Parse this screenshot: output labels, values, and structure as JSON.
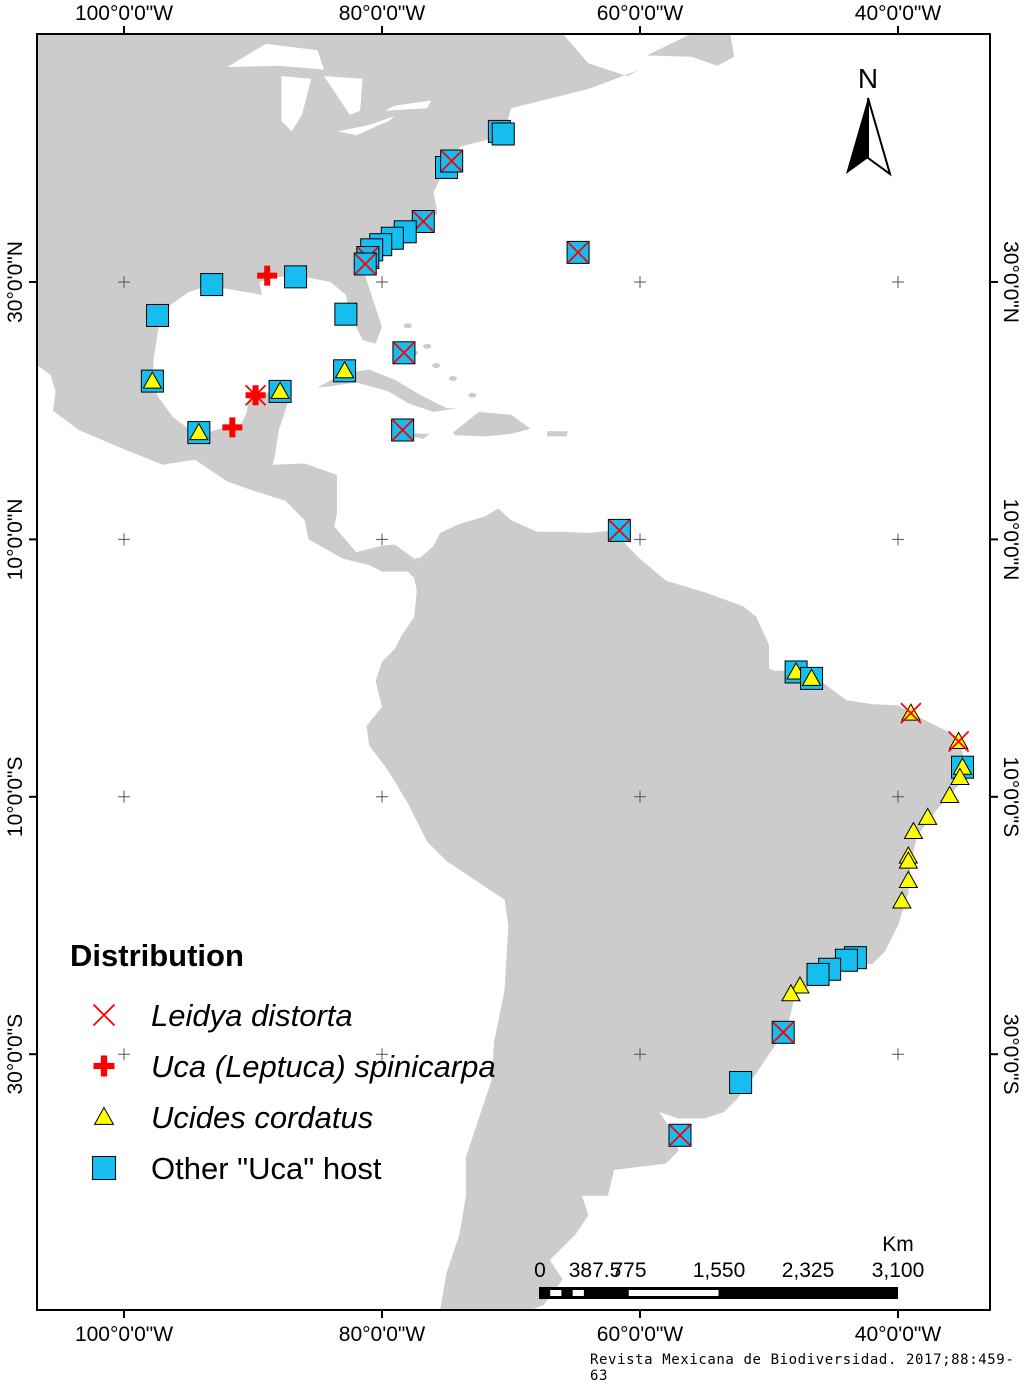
{
  "map": {
    "land_color": "#cccccc",
    "water_color": "#ffffff",
    "extent": {
      "lon": [
        -106.7,
        -32.9
      ],
      "lat": [
        -49.9,
        49.3
      ]
    },
    "graticule": {
      "lons": [
        -100,
        -80,
        -60,
        -40
      ],
      "lats": [
        30,
        10,
        -10,
        -30
      ]
    },
    "lon_labels": [
      "100°0'0\"W",
      "80°0'0\"W",
      "60°0'0\"W",
      "40°0'0\"W"
    ],
    "lat_labels": [
      "30°0'0\"N",
      "10°0'0\"N",
      "10°0'0\"S",
      "30°0'0\"S"
    ],
    "north_arrow": {
      "label": "N",
      "icon": "north-arrow-icon"
    },
    "scale_bar": {
      "unit": "Km",
      "labels": [
        "0",
        "387.5",
        "775",
        "1,550",
        "2,325",
        "3,100"
      ]
    }
  },
  "legend": {
    "title": "Distribution",
    "items": [
      {
        "key": "x",
        "label": "Leidya distorta",
        "italic": true,
        "color": "#ff0000"
      },
      {
        "key": "cross",
        "label": "Uca (Leptuca) spinicarpa",
        "italic": true,
        "color": "#ff0000"
      },
      {
        "key": "triangle",
        "label": "Ucides cordatus",
        "italic": true,
        "color": "#ffff00"
      },
      {
        "key": "square",
        "label": "Other \"Uca\" host",
        "italic": false,
        "color": "#16bdef"
      }
    ]
  },
  "points": [
    {
      "lon": -70.9,
      "lat": 41.7,
      "s": [
        "square"
      ]
    },
    {
      "lon": -70.6,
      "lat": 41.5,
      "s": [
        "square"
      ]
    },
    {
      "lon": -75.0,
      "lat": 38.9,
      "s": [
        "square"
      ]
    },
    {
      "lon": -74.6,
      "lat": 39.4,
      "s": [
        "square",
        "x"
      ]
    },
    {
      "lon": -76.8,
      "lat": 34.7,
      "s": [
        "square",
        "x"
      ]
    },
    {
      "lon": -78.2,
      "lat": 33.9,
      "s": [
        "square"
      ]
    },
    {
      "lon": -79.2,
      "lat": 33.4,
      "s": [
        "square"
      ]
    },
    {
      "lon": -80.1,
      "lat": 32.9,
      "s": [
        "square"
      ]
    },
    {
      "lon": -80.8,
      "lat": 32.5,
      "s": [
        "square"
      ]
    },
    {
      "lon": -81.1,
      "lat": 31.9,
      "s": [
        "square",
        "x"
      ]
    },
    {
      "lon": -81.3,
      "lat": 31.4,
      "s": [
        "square",
        "x"
      ]
    },
    {
      "lon": -64.8,
      "lat": 32.3,
      "s": [
        "square",
        "x"
      ]
    },
    {
      "lon": -86.7,
      "lat": 30.4,
      "s": [
        "square"
      ]
    },
    {
      "lon": -93.2,
      "lat": 29.8,
      "s": [
        "square"
      ]
    },
    {
      "lon": -97.4,
      "lat": 27.4,
      "s": [
        "square"
      ]
    },
    {
      "lon": -82.8,
      "lat": 27.5,
      "s": [
        "square"
      ]
    },
    {
      "lon": -78.3,
      "lat": 24.5,
      "s": [
        "square",
        "x"
      ]
    },
    {
      "lon": -97.8,
      "lat": 22.3,
      "s": [
        "square",
        "triangle"
      ]
    },
    {
      "lon": -82.9,
      "lat": 23.1,
      "s": [
        "square",
        "triangle"
      ]
    },
    {
      "lon": -87.9,
      "lat": 21.5,
      "s": [
        "square",
        "triangle"
      ]
    },
    {
      "lon": -94.2,
      "lat": 18.3,
      "s": [
        "square",
        "triangle"
      ]
    },
    {
      "lon": -78.4,
      "lat": 18.5,
      "s": [
        "square",
        "x"
      ]
    },
    {
      "lon": -61.6,
      "lat": 10.7,
      "s": [
        "square",
        "x"
      ]
    },
    {
      "lon": -88.9,
      "lat": 30.5,
      "s": [
        "cross"
      ]
    },
    {
      "lon": -91.6,
      "lat": 18.7,
      "s": [
        "cross"
      ]
    },
    {
      "lon": -89.8,
      "lat": 21.2,
      "s": [
        "cross",
        "x"
      ]
    },
    {
      "lon": -47.9,
      "lat": -0.3,
      "s": [
        "square",
        "triangle"
      ]
    },
    {
      "lon": -46.7,
      "lat": -0.8,
      "s": [
        "square",
        "triangle"
      ]
    },
    {
      "lon": -39.0,
      "lat": -3.5,
      "s": [
        "triangle",
        "x"
      ]
    },
    {
      "lon": -35.3,
      "lat": -5.7,
      "s": [
        "triangle",
        "x"
      ]
    },
    {
      "lon": -35.0,
      "lat": -7.7,
      "s": [
        "square",
        "triangle"
      ]
    },
    {
      "lon": -35.2,
      "lat": -8.5,
      "s": [
        "triangle"
      ]
    },
    {
      "lon": -36.0,
      "lat": -9.9,
      "s": [
        "triangle"
      ]
    },
    {
      "lon": -37.7,
      "lat": -11.6,
      "s": [
        "triangle"
      ]
    },
    {
      "lon": -38.8,
      "lat": -12.7,
      "s": [
        "triangle"
      ]
    },
    {
      "lon": -39.2,
      "lat": -14.6,
      "s": [
        "triangle"
      ]
    },
    {
      "lon": -39.2,
      "lat": -15.0,
      "s": [
        "triangle"
      ]
    },
    {
      "lon": -39.2,
      "lat": -16.5,
      "s": [
        "triangle"
      ]
    },
    {
      "lon": -39.7,
      "lat": -18.1,
      "s": [
        "triangle"
      ]
    },
    {
      "lon": -43.3,
      "lat": -22.5,
      "s": [
        "square"
      ]
    },
    {
      "lon": -44.0,
      "lat": -22.7,
      "s": [
        "square"
      ]
    },
    {
      "lon": -45.3,
      "lat": -23.4,
      "s": [
        "square"
      ]
    },
    {
      "lon": -46.2,
      "lat": -23.8,
      "s": [
        "square"
      ]
    },
    {
      "lon": -47.6,
      "lat": -24.7,
      "s": [
        "triangle"
      ]
    },
    {
      "lon": -48.3,
      "lat": -25.3,
      "s": [
        "triangle"
      ]
    },
    {
      "lon": -48.9,
      "lat": -28.3,
      "s": [
        "square",
        "x"
      ]
    },
    {
      "lon": -52.2,
      "lat": -32.2,
      "s": [
        "square"
      ]
    },
    {
      "lon": -56.9,
      "lat": -36.3,
      "s": [
        "square",
        "x"
      ]
    }
  ],
  "credit": "Revista Mexicana de Biodiversidad. 2017;88:459-63"
}
